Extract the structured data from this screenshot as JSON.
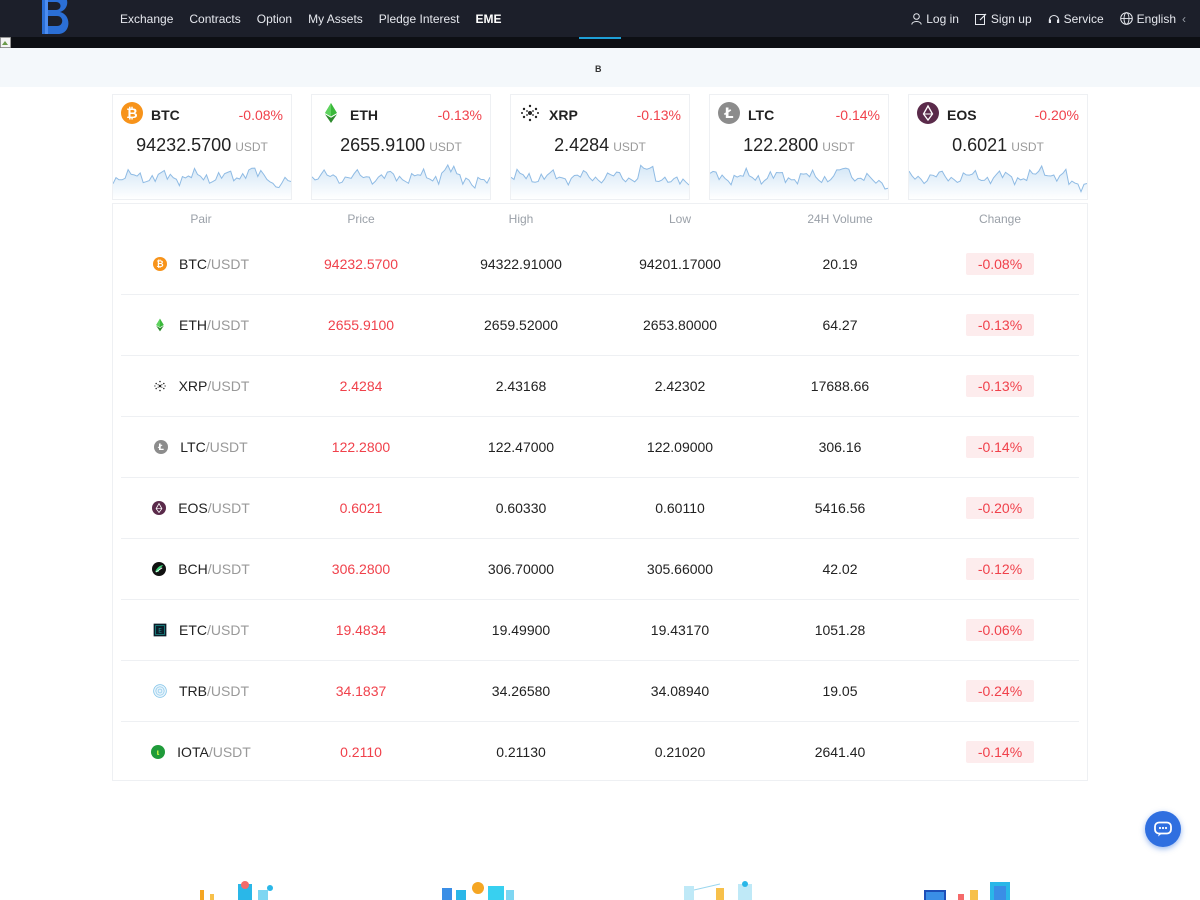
{
  "nav": {
    "items": [
      {
        "label": "Exchange"
      },
      {
        "label": "Contracts"
      },
      {
        "label": "Option"
      },
      {
        "label": "My Assets"
      },
      {
        "label": "Pledge Interest"
      },
      {
        "label": "EME"
      }
    ],
    "login": "Log in",
    "signup": "Sign up",
    "service": "Service",
    "language": "English",
    "language_chevron": "‹"
  },
  "banner": {
    "text": "B"
  },
  "cards": [
    {
      "symbol": "BTC",
      "change": "-0.08%",
      "price": "94232.5700",
      "unit": "USDT",
      "icon": "btc-icon"
    },
    {
      "symbol": "ETH",
      "change": "-0.13%",
      "price": "2655.9100",
      "unit": "USDT",
      "icon": "eth-icon"
    },
    {
      "symbol": "XRP",
      "change": "-0.13%",
      "price": "2.4284",
      "unit": "USDT",
      "icon": "xrp-icon"
    },
    {
      "symbol": "LTC",
      "change": "-0.14%",
      "price": "122.2800",
      "unit": "USDT",
      "icon": "ltc-icon"
    },
    {
      "symbol": "EOS",
      "change": "-0.20%",
      "price": "0.6021",
      "unit": "USDT",
      "icon": "eos-icon"
    }
  ],
  "table": {
    "headers": [
      "Pair",
      "Price",
      "High",
      "Low",
      "24H Volume",
      "Change"
    ],
    "rows": [
      {
        "base": "BTC",
        "quote": "/USDT",
        "price": "94232.5700",
        "high": "94322.91000",
        "low": "94201.17000",
        "volume": "20.19",
        "change": "-0.08%",
        "icon": "btc-icon"
      },
      {
        "base": "ETH",
        "quote": "/USDT",
        "price": "2655.9100",
        "high": "2659.52000",
        "low": "2653.80000",
        "volume": "64.27",
        "change": "-0.13%",
        "icon": "eth-icon"
      },
      {
        "base": "XRP",
        "quote": "/USDT",
        "price": "2.4284",
        "high": "2.43168",
        "low": "2.42302",
        "volume": "17688.66",
        "change": "-0.13%",
        "icon": "xrp-icon"
      },
      {
        "base": "LTC",
        "quote": "/USDT",
        "price": "122.2800",
        "high": "122.47000",
        "low": "122.09000",
        "volume": "306.16",
        "change": "-0.14%",
        "icon": "ltc-icon"
      },
      {
        "base": "EOS",
        "quote": "/USDT",
        "price": "0.6021",
        "high": "0.60330",
        "low": "0.60110",
        "volume": "5416.56",
        "change": "-0.20%",
        "icon": "eos-icon"
      },
      {
        "base": "BCH",
        "quote": "/USDT",
        "price": "306.2800",
        "high": "306.70000",
        "low": "305.66000",
        "volume": "42.02",
        "change": "-0.12%",
        "icon": "bch-icon"
      },
      {
        "base": "ETC",
        "quote": "/USDT",
        "price": "19.4834",
        "high": "19.49900",
        "low": "19.43170",
        "volume": "1051.28",
        "change": "-0.06%",
        "icon": "etc-icon"
      },
      {
        "base": "TRB",
        "quote": "/USDT",
        "price": "34.1837",
        "high": "34.26580",
        "low": "34.08940",
        "volume": "19.05",
        "change": "-0.24%",
        "icon": "trb-icon"
      },
      {
        "base": "IOTA",
        "quote": "/USDT",
        "price": "0.2110",
        "high": "0.21130",
        "low": "0.21020",
        "volume": "2641.40",
        "change": "-0.14%",
        "icon": "iota-icon"
      }
    ]
  },
  "colors": {
    "nav_bg": "#1c1f2a",
    "down": "#f0414b",
    "down_bg": "#fdeced",
    "accent": "#1e9fd6",
    "fab": "#2f6fe0"
  }
}
